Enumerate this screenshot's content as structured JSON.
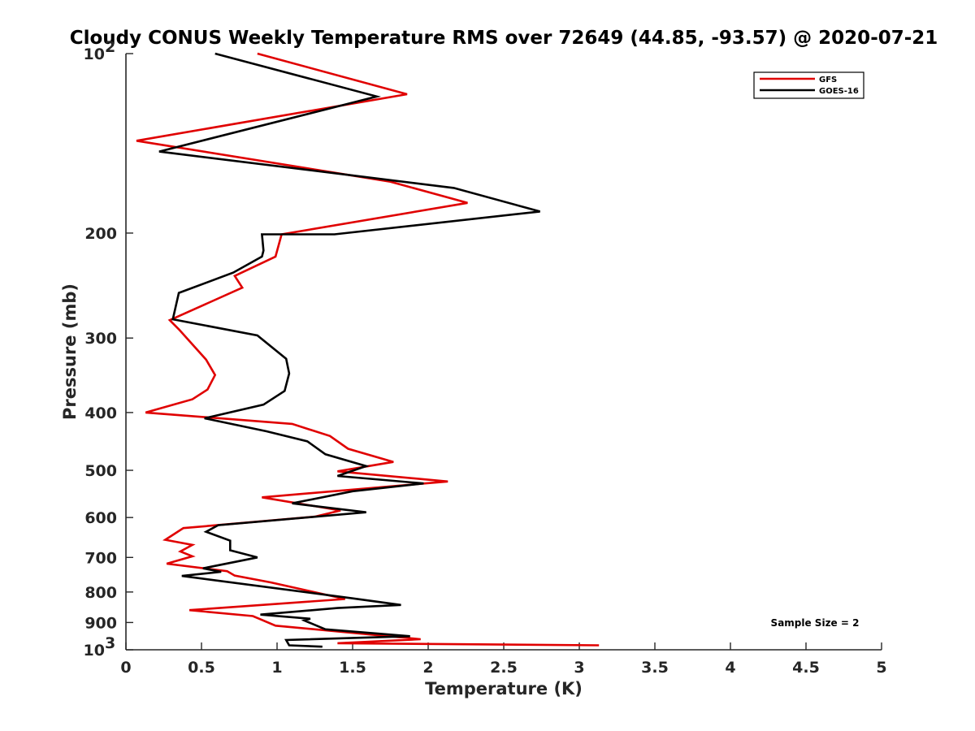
{
  "chart_data": {
    "type": "line",
    "title": "Cloudy CONUS Weekly Temperature RMS over 72649 (44.85, -93.57) @ 2020-07-21",
    "xlabel": "Temperature (K)",
    "ylabel": "Pressure (mb)",
    "xlim": [
      0,
      5
    ],
    "ylim": [
      100,
      1000
    ],
    "y_scale": "log",
    "y_reversed": true,
    "grid": false,
    "x_ticks": [
      "0",
      "0.5",
      "1",
      "1.5",
      "2",
      "2.5",
      "3",
      "3.5",
      "4",
      "4.5",
      "5"
    ],
    "y_ticks": [
      {
        "value": 100,
        "base": "10",
        "exp": "2"
      },
      {
        "value": 200,
        "label": "200"
      },
      {
        "value": 300,
        "label": "300"
      },
      {
        "value": 400,
        "label": "400"
      },
      {
        "value": 500,
        "label": "500"
      },
      {
        "value": 600,
        "label": "600"
      },
      {
        "value": 700,
        "label": "700"
      },
      {
        "value": 800,
        "label": "800"
      },
      {
        "value": 900,
        "label": "900"
      },
      {
        "value": 1000,
        "base": "10",
        "exp": "3"
      }
    ],
    "legend_position": "top-right",
    "annotation": "Sample Size = 2",
    "series": [
      {
        "name": "GFS",
        "color": "#e00000",
        "x": [
          0.87,
          1.86,
          0.07,
          1.75,
          2.26,
          1.03,
          0.99,
          0.72,
          0.77,
          0.29,
          0.35,
          0.53,
          0.59,
          0.54,
          0.44,
          0.13,
          1.1,
          1.35,
          1.47,
          1.77,
          1.4,
          2.13,
          0.9,
          1.42,
          1.25,
          0.38,
          0.26,
          0.44,
          0.36,
          0.44,
          0.27,
          0.67,
          0.72,
          0.96,
          1.45,
          0.42,
          0.84,
          0.99,
          1.95,
          1.4,
          3.13
        ],
        "y": [
          100,
          117,
          140,
          164,
          178,
          201,
          219,
          236,
          247,
          280,
          290,
          326,
          346,
          366,
          380,
          400,
          418,
          438,
          460,
          484,
          502,
          522,
          555,
          584,
          598,
          625,
          654,
          667,
          684,
          697,
          717,
          738,
          751,
          771,
          822,
          858,
          878,
          911,
          960,
          975,
          983
        ]
      },
      {
        "name": "GOES-16",
        "color": "#000000",
        "x": [
          0.59,
          1.66,
          0.22,
          2.17,
          2.74,
          1.38,
          0.9,
          0.91,
          0.9,
          0.71,
          0.35,
          0.31,
          0.87,
          1.06,
          1.08,
          1.05,
          0.91,
          0.52,
          0.93,
          1.2,
          1.32,
          1.59,
          1.4,
          1.97,
          1.5,
          1.1,
          1.59,
          0.61,
          0.53,
          0.69,
          0.69,
          0.87,
          0.51,
          0.63,
          0.37,
          1.5,
          1.82,
          1.4,
          0.89,
          1.22,
          1.18,
          1.32,
          1.88,
          1.06,
          1.08,
          1.3
        ],
        "y": [
          100,
          118,
          146,
          168,
          184,
          201,
          201,
          214,
          219,
          233,
          252,
          279,
          297,
          325,
          344,
          368,
          388,
          409,
          430,
          447,
          470,
          492,
          511,
          526,
          542,
          568,
          588,
          618,
          634,
          656,
          681,
          700,
          730,
          740,
          752,
          820,
          841,
          851,
          873,
          887,
          893,
          924,
          949,
          963,
          983,
          988
        ]
      }
    ]
  }
}
